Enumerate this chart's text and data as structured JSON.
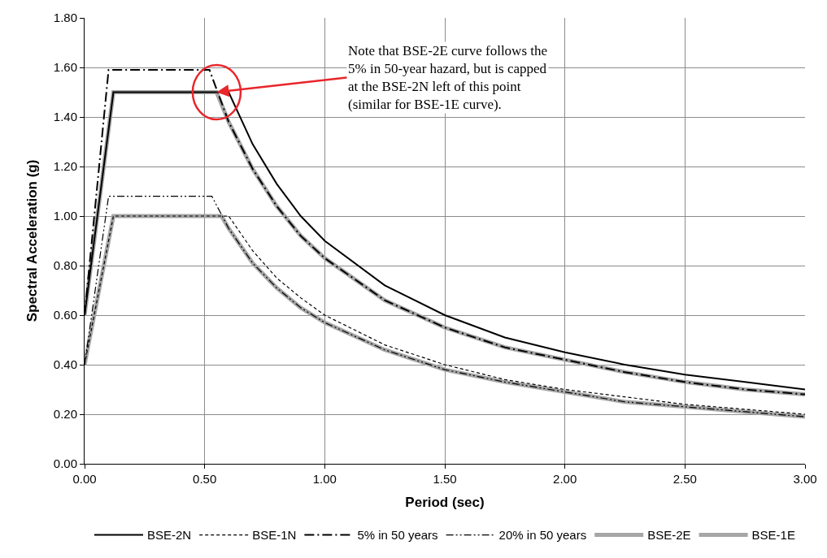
{
  "chart_data": {
    "type": "line",
    "xlabel": "Period (sec)",
    "ylabel": "Spectral Acceleration (g)",
    "xlim": [
      0,
      3
    ],
    "xticks": [
      {
        "value": 0,
        "label": "0.00"
      },
      {
        "value": 0.5,
        "label": "0.50"
      },
      {
        "value": 1,
        "label": "1.00"
      },
      {
        "value": 1.5,
        "label": "1.50"
      },
      {
        "value": 2,
        "label": "2.00"
      },
      {
        "value": 2.5,
        "label": "2.50"
      },
      {
        "value": 3,
        "label": "3.00"
      }
    ],
    "ylim": [
      0,
      1.8
    ],
    "yticks": [
      {
        "value": 0,
        "label": "0.00"
      },
      {
        "value": 0.2,
        "label": "0.20"
      },
      {
        "value": 0.4,
        "label": "0.40"
      },
      {
        "value": 0.6,
        "label": "0.60"
      },
      {
        "value": 0.8,
        "label": "0.80"
      },
      {
        "value": 1.0,
        "label": "1.00"
      },
      {
        "value": 1.2,
        "label": "1.20"
      },
      {
        "value": 1.4,
        "label": "1.40"
      },
      {
        "value": 1.6,
        "label": "1.60"
      },
      {
        "value": 1.8,
        "label": "1.80"
      }
    ],
    "grid": true,
    "legend": "bottom",
    "marker": "none",
    "series": [
      {
        "name": "BSE-2N",
        "color": "#000000",
        "line_style": "solid",
        "x": [
          0,
          0.12,
          0.6,
          0.7,
          0.8,
          0.9,
          1.0,
          1.25,
          1.5,
          1.75,
          2.0,
          2.25,
          2.5,
          2.75,
          3.0
        ],
        "values": [
          0.6,
          1.5,
          1.5,
          1.29,
          1.13,
          1.0,
          0.9,
          0.72,
          0.6,
          0.51,
          0.45,
          0.4,
          0.36,
          0.33,
          0.3
        ]
      },
      {
        "name": "BSE-1N",
        "color": "#000000",
        "line_style": "dashed",
        "x": [
          0,
          0.12,
          0.6,
          0.7,
          0.8,
          0.9,
          1.0,
          1.25,
          1.5,
          1.75,
          2.0,
          2.25,
          2.5,
          2.75,
          3.0
        ],
        "values": [
          0.4,
          1.0,
          1.0,
          0.86,
          0.75,
          0.67,
          0.6,
          0.48,
          0.4,
          0.34,
          0.3,
          0.27,
          0.24,
          0.22,
          0.2
        ]
      },
      {
        "name": "5% in 50 years",
        "color": "#000000",
        "line_style": "dashdot",
        "x": [
          0,
          0.1,
          0.52,
          0.6,
          0.7,
          0.8,
          0.9,
          1.0,
          1.25,
          1.5,
          1.75,
          2.0,
          2.25,
          2.5,
          2.75,
          3.0
        ],
        "values": [
          0.6,
          1.59,
          1.59,
          1.38,
          1.19,
          1.04,
          0.92,
          0.83,
          0.66,
          0.55,
          0.47,
          0.42,
          0.37,
          0.33,
          0.3,
          0.28
        ]
      },
      {
        "name": "20% in 50 years",
        "color": "#000000",
        "line_style": "dashdotdot",
        "x": [
          0,
          0.1,
          0.53,
          0.6,
          0.7,
          0.8,
          0.9,
          1.0,
          1.25,
          1.5,
          1.75,
          2.0,
          2.25,
          2.5,
          2.75,
          3.0
        ],
        "values": [
          0.4,
          1.08,
          1.08,
          0.95,
          0.81,
          0.71,
          0.63,
          0.57,
          0.46,
          0.38,
          0.33,
          0.29,
          0.25,
          0.23,
          0.21,
          0.19
        ]
      },
      {
        "name": "BSE-2E",
        "color": "#a6a6a6",
        "line_style": "solid",
        "x": [
          0,
          0.12,
          0.55,
          0.6,
          0.7,
          0.8,
          0.9,
          1.0,
          1.25,
          1.5,
          1.75,
          2.0,
          2.25,
          2.5,
          2.75,
          3.0
        ],
        "values": [
          0.6,
          1.5,
          1.5,
          1.38,
          1.19,
          1.04,
          0.92,
          0.83,
          0.66,
          0.55,
          0.47,
          0.42,
          0.37,
          0.33,
          0.3,
          0.28
        ]
      },
      {
        "name": "BSE-1E",
        "color": "#a6a6a6",
        "line_style": "solid",
        "x": [
          0,
          0.12,
          0.57,
          0.6,
          0.7,
          0.8,
          0.9,
          1.0,
          1.25,
          1.5,
          1.75,
          2.0,
          2.25,
          2.5,
          2.75,
          3.0
        ],
        "values": [
          0.4,
          1.0,
          1.0,
          0.95,
          0.81,
          0.71,
          0.63,
          0.57,
          0.46,
          0.38,
          0.33,
          0.29,
          0.25,
          0.23,
          0.21,
          0.19
        ]
      }
    ],
    "annotations": [
      {
        "text": "Note that BSE-2E curve follows the\n5% in 50-year hazard, but is capped\nat the BSE-2N left of this point\n(similar for BSE-1E curve).",
        "x": 0.55,
        "y": 1.5
      }
    ]
  }
}
